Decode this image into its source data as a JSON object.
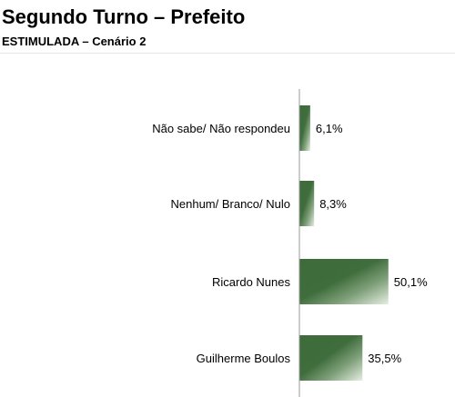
{
  "header": {
    "title": "Segundo Turno – Prefeito",
    "subtitle": "ESTIMULADA – Cenário 2"
  },
  "colors": {
    "bar_dark": "#3d6b3a",
    "bar_light": "#e6eee2",
    "axis": "#999999"
  },
  "chart_data": {
    "type": "bar",
    "orientation": "horizontal",
    "title": "Segundo Turno – Prefeito",
    "subtitle": "ESTIMULADA – Cenário 2",
    "categories": [
      "Não sabe/ Não respondeu",
      "Nenhum/ Branco/ Nulo",
      "Ricardo Nunes",
      "Guilherme Boulos"
    ],
    "values": [
      6.1,
      8.3,
      50.1,
      35.5
    ],
    "value_labels": [
      "6,1%",
      "8,3%",
      "50,1%",
      "35,5%"
    ],
    "xlim": [
      0,
      62
    ],
    "grid": false,
    "legend": "none"
  }
}
